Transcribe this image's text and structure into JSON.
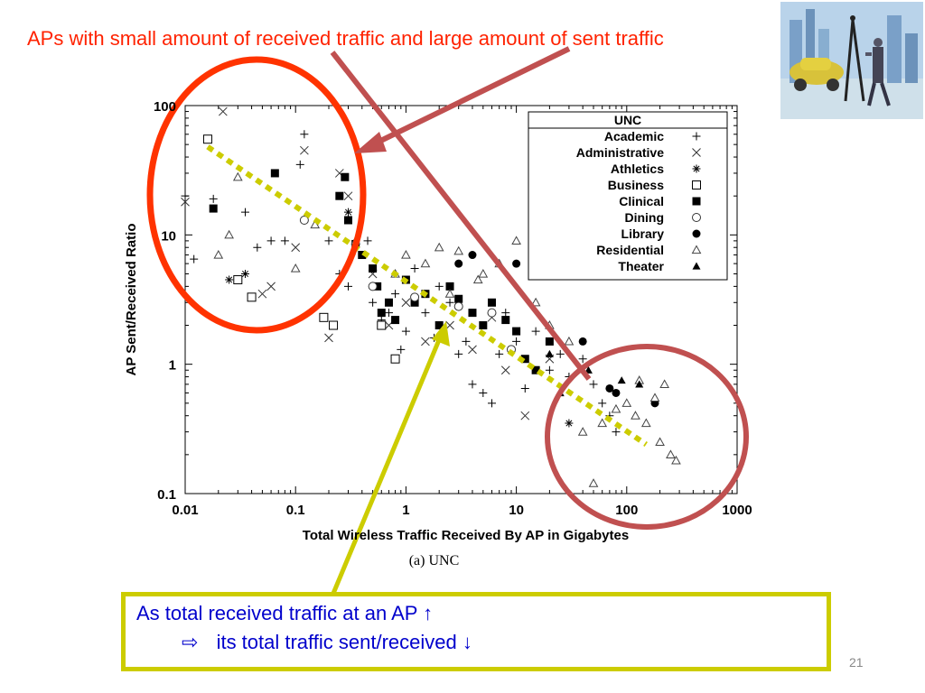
{
  "slide": {
    "title": "APs with small amount of received traffic and large amount of sent traffic",
    "callout_line1": "As total received traffic at an AP ↑",
    "callout_arrow": "⇨",
    "callout_line2": "its total traffic sent/received ↓",
    "slide_number": "21",
    "title_color": "#ff2200",
    "callout_text_color": "#0000cc",
    "callout_border_color": "#cccc00",
    "photo_icon": "city-people-car-photo"
  },
  "chart_data": {
    "type": "scatter",
    "title": "",
    "caption": "(a) UNC",
    "xlabel": "Total Wireless Traffic Received By AP in Gigabytes",
    "ylabel": "AP Sent/Received Ratio",
    "xscale": "log",
    "yscale": "log",
    "xlim": [
      0.01,
      1000
    ],
    "ylim": [
      0.1,
      100
    ],
    "x_ticks": [
      "0.01",
      "0.1",
      "1",
      "10",
      "100",
      "1000"
    ],
    "y_ticks": [
      "0.1",
      "1",
      "10",
      "100"
    ],
    "legend_title": "UNC",
    "legend_position": "top-right",
    "series": [
      {
        "name": "Academic",
        "marker": "+",
        "points": [
          [
            0.01,
            20
          ],
          [
            0.012,
            6.5
          ],
          [
            0.018,
            19
          ],
          [
            0.035,
            15
          ],
          [
            0.045,
            8
          ],
          [
            0.06,
            9
          ],
          [
            0.08,
            9
          ],
          [
            0.12,
            60
          ],
          [
            0.11,
            35
          ],
          [
            0.2,
            9
          ],
          [
            0.25,
            5
          ],
          [
            0.3,
            4
          ],
          [
            0.45,
            9
          ],
          [
            0.5,
            3
          ],
          [
            0.6,
            2.2
          ],
          [
            0.8,
            3.5
          ],
          [
            1,
            1.8
          ],
          [
            1.2,
            5.5
          ],
          [
            1.5,
            2.5
          ],
          [
            2,
            4
          ],
          [
            2.5,
            3
          ],
          [
            3,
            1.2
          ],
          [
            4,
            0.7
          ],
          [
            5,
            0.6
          ],
          [
            6,
            0.5
          ],
          [
            8,
            2.5
          ],
          [
            10,
            1.5
          ],
          [
            15,
            1.8
          ],
          [
            20,
            0.9
          ],
          [
            25,
            1.2
          ],
          [
            30,
            0.8
          ],
          [
            40,
            1.1
          ],
          [
            50,
            0.7
          ],
          [
            60,
            0.5
          ],
          [
            70,
            0.4
          ],
          [
            80,
            0.3
          ],
          [
            12,
            0.65
          ],
          [
            3.5,
            1.5
          ],
          [
            7,
            1.2
          ],
          [
            0.9,
            1.3
          ],
          [
            1.8,
            1.6
          ],
          [
            0.7,
            2.5
          ]
        ]
      },
      {
        "name": "Administrative",
        "marker": "×",
        "points": [
          [
            0.022,
            90
          ],
          [
            0.01,
            18
          ],
          [
            0.06,
            4
          ],
          [
            0.1,
            8
          ],
          [
            0.05,
            3.5
          ],
          [
            0.12,
            45
          ],
          [
            0.25,
            30
          ],
          [
            0.3,
            20
          ],
          [
            0.2,
            1.6
          ],
          [
            0.5,
            5
          ],
          [
            0.7,
            2
          ],
          [
            1,
            3
          ],
          [
            1.5,
            1.5
          ],
          [
            2.5,
            2
          ],
          [
            4,
            1.3
          ],
          [
            8,
            0.9
          ],
          [
            12,
            0.4
          ],
          [
            20,
            1.1
          ],
          [
            6,
            2.3
          ]
        ]
      },
      {
        "name": "Athletics",
        "marker": "*",
        "points": [
          [
            0.035,
            5
          ],
          [
            0.025,
            4.5
          ],
          [
            30,
            0.35
          ],
          [
            0.3,
            15
          ]
        ]
      },
      {
        "name": "Business",
        "marker": "□",
        "points": [
          [
            0.016,
            55
          ],
          [
            0.03,
            4.5
          ],
          [
            0.04,
            3.3
          ],
          [
            0.18,
            2.3
          ],
          [
            0.22,
            2
          ],
          [
            0.6,
            2
          ],
          [
            0.8,
            1.1
          ]
        ]
      },
      {
        "name": "Clinical",
        "marker": "■",
        "points": [
          [
            0.018,
            16
          ],
          [
            0.065,
            30
          ],
          [
            0.25,
            20
          ],
          [
            0.28,
            28
          ],
          [
            0.3,
            13
          ],
          [
            0.35,
            8.5
          ],
          [
            0.4,
            7
          ],
          [
            0.5,
            5.5
          ],
          [
            0.55,
            4
          ],
          [
            0.6,
            2.5
          ],
          [
            0.7,
            3
          ],
          [
            0.8,
            2.2
          ],
          [
            1,
            4.5
          ],
          [
            1.2,
            3
          ],
          [
            1.5,
            3.5
          ],
          [
            2,
            2
          ],
          [
            2.5,
            4
          ],
          [
            3,
            3.2
          ],
          [
            4,
            2.5
          ],
          [
            5,
            2
          ],
          [
            6,
            3
          ],
          [
            8,
            2.2
          ],
          [
            10,
            1.8
          ],
          [
            15,
            0.9
          ],
          [
            20,
            1.5
          ],
          [
            12,
            1.1
          ]
        ]
      },
      {
        "name": "Dining",
        "marker": "○",
        "points": [
          [
            0.12,
            13
          ],
          [
            0.5,
            4
          ],
          [
            1.2,
            3.3
          ],
          [
            3,
            2.8
          ],
          [
            6,
            2.5
          ],
          [
            9,
            1.3
          ]
        ]
      },
      {
        "name": "Library",
        "marker": "●",
        "points": [
          [
            3,
            6
          ],
          [
            4,
            7
          ],
          [
            10,
            6
          ],
          [
            40,
            1.5
          ],
          [
            70,
            0.65
          ],
          [
            80,
            0.6
          ],
          [
            180,
            0.5
          ]
        ]
      },
      {
        "name": "Residential",
        "marker": "△",
        "points": [
          [
            0.03,
            28
          ],
          [
            0.025,
            10
          ],
          [
            0.02,
            7
          ],
          [
            0.1,
            5.5
          ],
          [
            0.15,
            12
          ],
          [
            0.35,
            9
          ],
          [
            0.8,
            5
          ],
          [
            1,
            7
          ],
          [
            1.5,
            6
          ],
          [
            2,
            8
          ],
          [
            3,
            7.5
          ],
          [
            5,
            5
          ],
          [
            7,
            6
          ],
          [
            10,
            9
          ],
          [
            15,
            3
          ],
          [
            20,
            2
          ],
          [
            30,
            1.5
          ],
          [
            40,
            0.3
          ],
          [
            50,
            0.12
          ],
          [
            60,
            0.35
          ],
          [
            80,
            0.45
          ],
          [
            100,
            0.5
          ],
          [
            120,
            0.4
          ],
          [
            150,
            0.35
          ],
          [
            200,
            0.25
          ],
          [
            250,
            0.2
          ],
          [
            280,
            0.18
          ],
          [
            180,
            0.55
          ],
          [
            220,
            0.7
          ],
          [
            130,
            0.75
          ],
          [
            2.5,
            3.5
          ],
          [
            4.5,
            4.5
          ]
        ]
      },
      {
        "name": "Theater",
        "marker": "▲",
        "points": [
          [
            20,
            1.2
          ],
          [
            25,
            0.6
          ],
          [
            45,
            0.9
          ],
          [
            90,
            0.75
          ],
          [
            130,
            0.7
          ]
        ]
      }
    ],
    "trend_line": {
      "x": [
        0.016,
        150
      ],
      "y": [
        48,
        0.24
      ],
      "style": "dotted",
      "color": "#cccc00"
    },
    "annotations": [
      {
        "shape": "ellipse",
        "color": "#ff3300",
        "label": "high-ratio-cluster"
      },
      {
        "shape": "ellipse",
        "color": "#c05050",
        "label": "low-ratio-cluster"
      }
    ]
  }
}
